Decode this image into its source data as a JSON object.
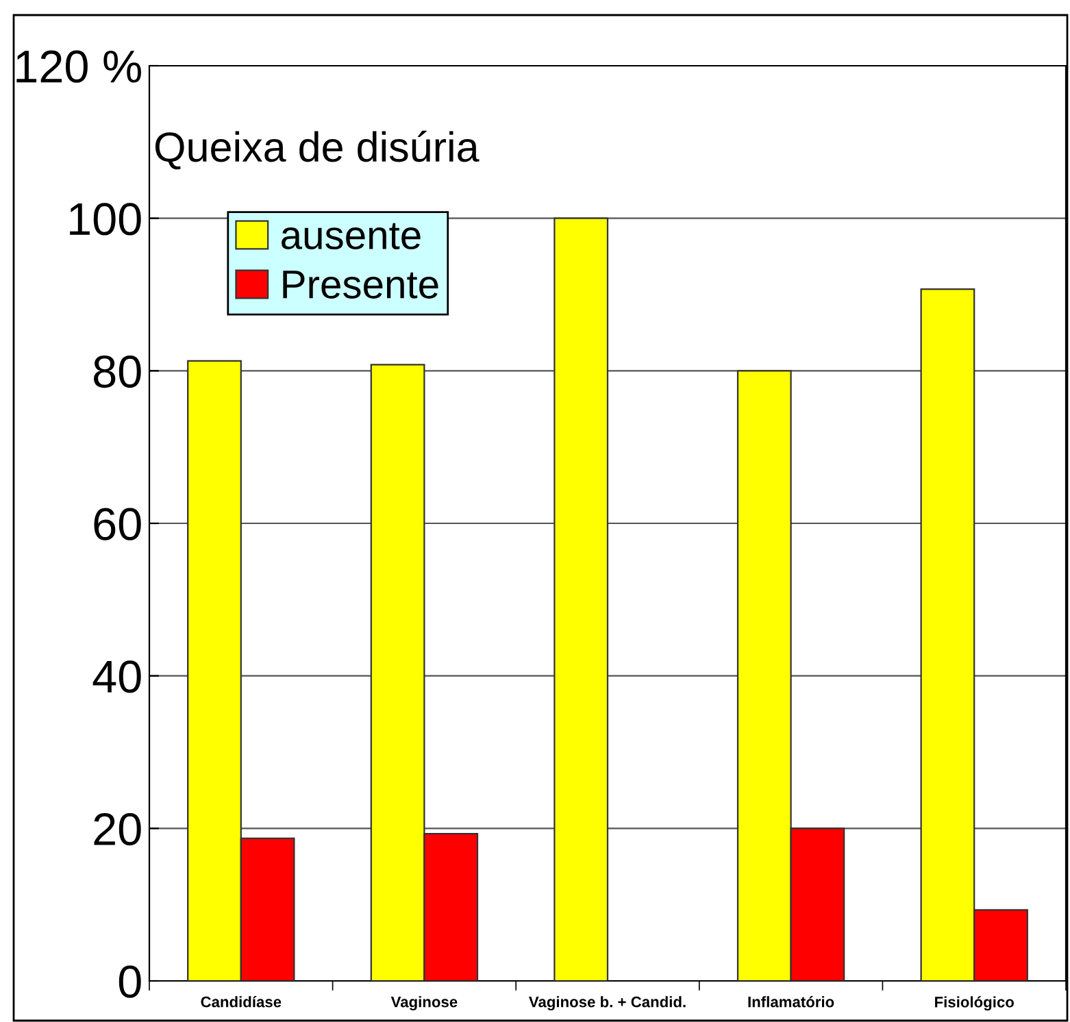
{
  "chart_data": {
    "type": "bar",
    "categories": [
      "Candidíase",
      "Vaginose",
      "Vaginose b. + Candid.",
      "Inflamatório",
      "Fisiológico"
    ],
    "series": [
      {
        "name": "ausente",
        "color": "#ffff00",
        "values": [
          81.3,
          80.8,
          100,
          80,
          90.7
        ]
      },
      {
        "name": "Presente",
        "color": "#ff0000",
        "values": [
          18.7,
          19.3,
          0,
          20,
          9.3
        ]
      }
    ],
    "ylim": [
      0,
      120
    ],
    "yticks": [
      0,
      20,
      40,
      60,
      80,
      100,
      {
        "value": 120,
        "label": "120 %"
      }
    ],
    "grid": "y",
    "legend": "top left",
    "annotations": [
      "Queixa de disúria"
    ]
  }
}
